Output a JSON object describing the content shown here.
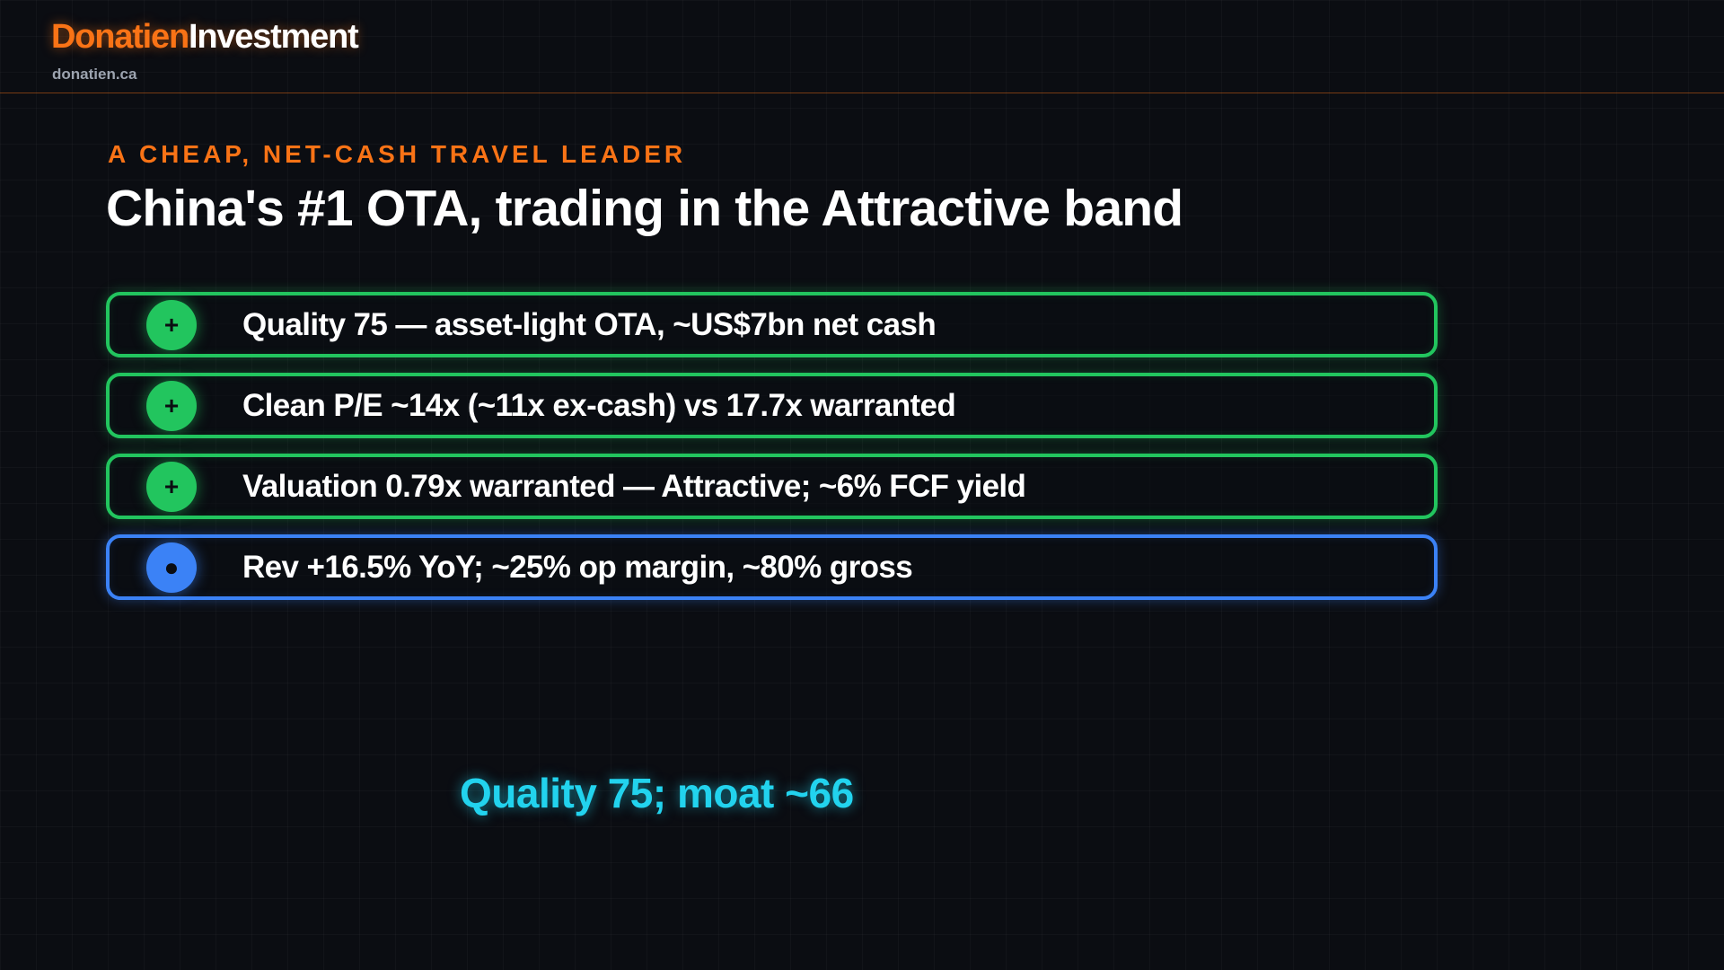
{
  "header": {
    "brand_primary": "Donatien",
    "brand_secondary": "Investment",
    "site": "donatien.ca"
  },
  "slide": {
    "kicker": "A CHEAP, NET-CASH TRAVEL LEADER",
    "title": "China's #1 OTA, trading in the Attractive band",
    "items": [
      {
        "icon": "+",
        "icon_name": "plus-icon",
        "text": "Quality 75 — asset-light OTA, ~US$7bn net cash",
        "status": "positive",
        "color": "#22c55e"
      },
      {
        "icon": "+",
        "icon_name": "plus-icon",
        "text": "Clean P/E ~14x (~11x ex-cash) vs 17.7x warranted",
        "status": "positive",
        "color": "#22c55e"
      },
      {
        "icon": "+",
        "icon_name": "plus-icon",
        "text": "Valuation 0.79x warranted — Attractive; ~6% FCF yield",
        "status": "positive",
        "color": "#22c55e"
      },
      {
        "icon": "●",
        "icon_name": "dot-icon",
        "text": "Rev +16.5% YoY; ~25% op margin, ~80% gross",
        "status": "neutral",
        "color": "#3b82f6"
      }
    ],
    "footer_note": "Quality 75; moat ~66"
  },
  "colors": {
    "accent": "#f97316",
    "positive": "#22c55e",
    "neutral": "#3b82f6",
    "highlight": "#22d3ee",
    "background": "#0b0d12"
  }
}
